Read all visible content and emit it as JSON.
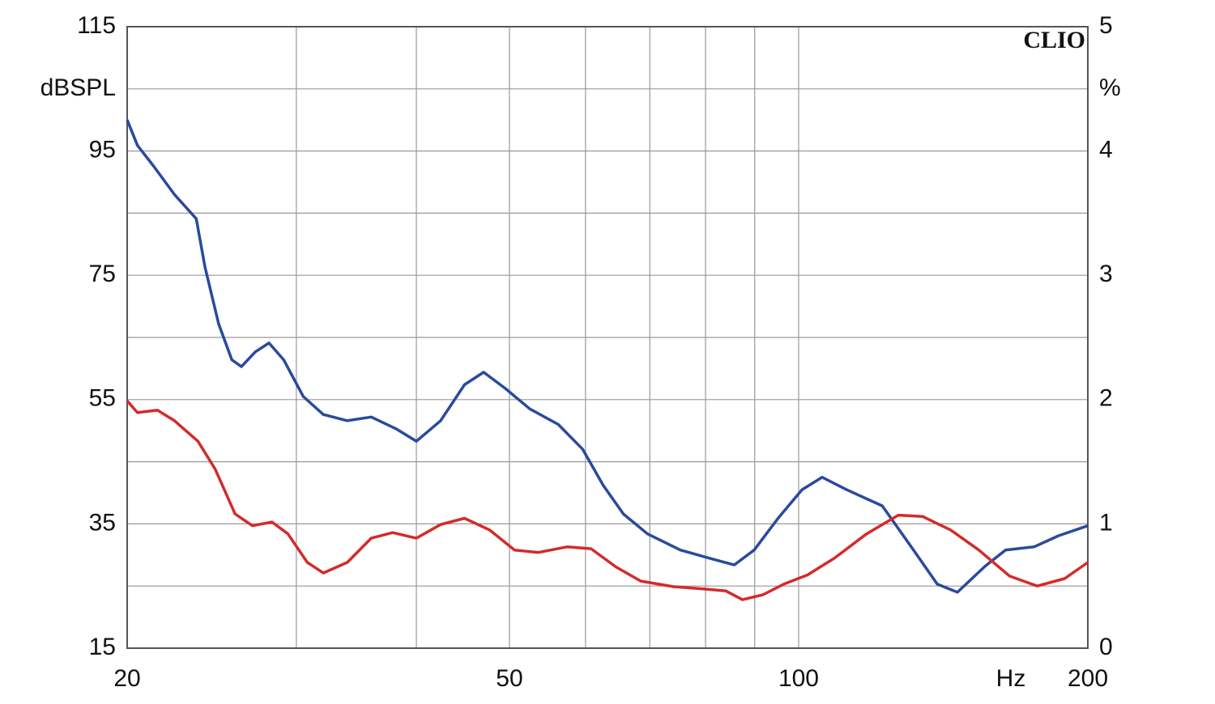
{
  "chart_data": {
    "type": "line",
    "brand": "CLIO",
    "y_label": "dBSPL",
    "y2_label": "%",
    "x_label": "Hz",
    "x_scale": "log",
    "xlim": [
      20,
      200
    ],
    "xticks": [
      20,
      50,
      100,
      200
    ],
    "x_minor_grid": [
      30,
      40,
      60,
      70,
      80,
      90
    ],
    "ylim": [
      15,
      115
    ],
    "yticks": [
      15,
      35,
      55,
      75,
      95,
      115
    ],
    "y_minor_grid": [
      25,
      45,
      65,
      85,
      105
    ],
    "y2lim": [
      0,
      5
    ],
    "y2ticks": [
      0,
      1,
      2,
      3,
      4,
      5
    ],
    "grid": true,
    "series": [
      {
        "color": "#2a4a9c",
        "x": [
          20,
          20.5,
          21.3,
          22.4,
          23.6,
          24.1,
          24.9,
          25.7,
          26.3,
          27.2,
          28.1,
          29.1,
          30.5,
          32,
          33.9,
          35.9,
          38.1,
          40,
          42.4,
          44.9,
          47,
          49.5,
          52.5,
          56.2,
          59.6,
          62.6,
          65.7,
          69.6,
          75.3,
          80.6,
          85.7,
          89.9,
          95.3,
          100.8,
          105.8,
          112.2,
          122.2,
          131.7,
          139.4,
          146.3,
          156.4,
          164.2,
          175.8,
          186.5,
          200
        ],
        "values": [
          100,
          95.9,
          92.6,
          88,
          84.1,
          76.3,
          67.2,
          61.4,
          60.3,
          62.7,
          64.1,
          61.4,
          55.5,
          52.6,
          51.6,
          52.2,
          50.3,
          48.3,
          51.6,
          57.4,
          59.4,
          56.8,
          53.5,
          51,
          47,
          41.2,
          36.6,
          33.4,
          30.8,
          29.5,
          28.4,
          30.8,
          36,
          40.5,
          42.5,
          40.5,
          37.9,
          30.8,
          25.3,
          24,
          28.2,
          30.8,
          31.3,
          33.1,
          34.7
        ]
      },
      {
        "color": "#d42a2a",
        "x": [
          20,
          20.5,
          21.5,
          22.4,
          23.7,
          24.7,
          25.9,
          27,
          28.3,
          29.4,
          30.8,
          32,
          33.9,
          35.9,
          37.8,
          40,
          42.4,
          44.9,
          47.7,
          50.6,
          53.6,
          57.4,
          60.8,
          64.5,
          68.5,
          74.1,
          80,
          84,
          87.4,
          91.8,
          96.5,
          102.2,
          109,
          117.7,
          127,
          134.6,
          144,
          154,
          165.8,
          177.1,
          189.2,
          200
        ],
        "values": [
          54.8,
          52.9,
          53.3,
          51.6,
          48.3,
          43.8,
          36.6,
          34.7,
          35.3,
          33.4,
          28.8,
          27.1,
          28.8,
          32.7,
          33.6,
          32.7,
          34.9,
          35.9,
          34,
          30.8,
          30.4,
          31.3,
          31,
          28.1,
          25.8,
          24.9,
          24.5,
          24.2,
          22.8,
          23.6,
          25.3,
          26.8,
          29.5,
          33.4,
          36.4,
          36.2,
          34,
          30.8,
          26.6,
          25,
          26.2,
          28.8
        ]
      }
    ]
  }
}
